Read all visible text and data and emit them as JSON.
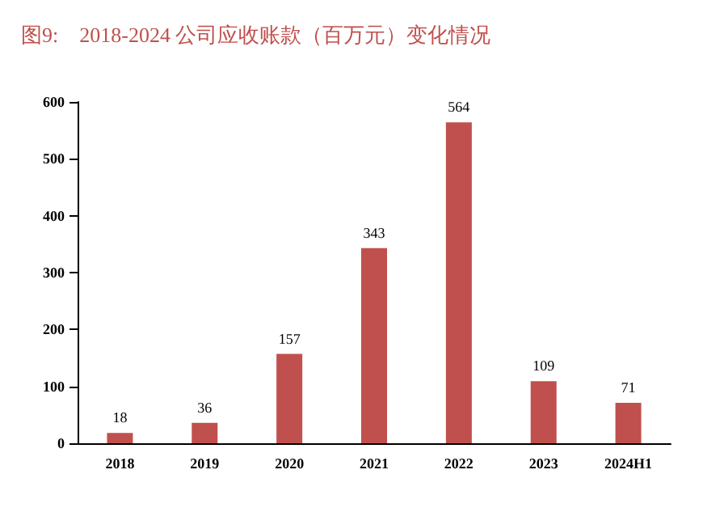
{
  "chart_data": {
    "type": "bar",
    "title": "图9:    2018-2024 公司应收账款（百万元）变化情况",
    "categories": [
      "2018",
      "2019",
      "2020",
      "2021",
      "2022",
      "2023",
      "2024H1"
    ],
    "values": [
      18,
      36,
      157,
      343,
      564,
      109,
      71
    ],
    "color": "#c0504d",
    "data_labels": true,
    "grid": false,
    "ylim": [
      0,
      600
    ],
    "yticks": [
      0,
      100,
      200,
      300,
      400,
      500,
      600
    ]
  }
}
